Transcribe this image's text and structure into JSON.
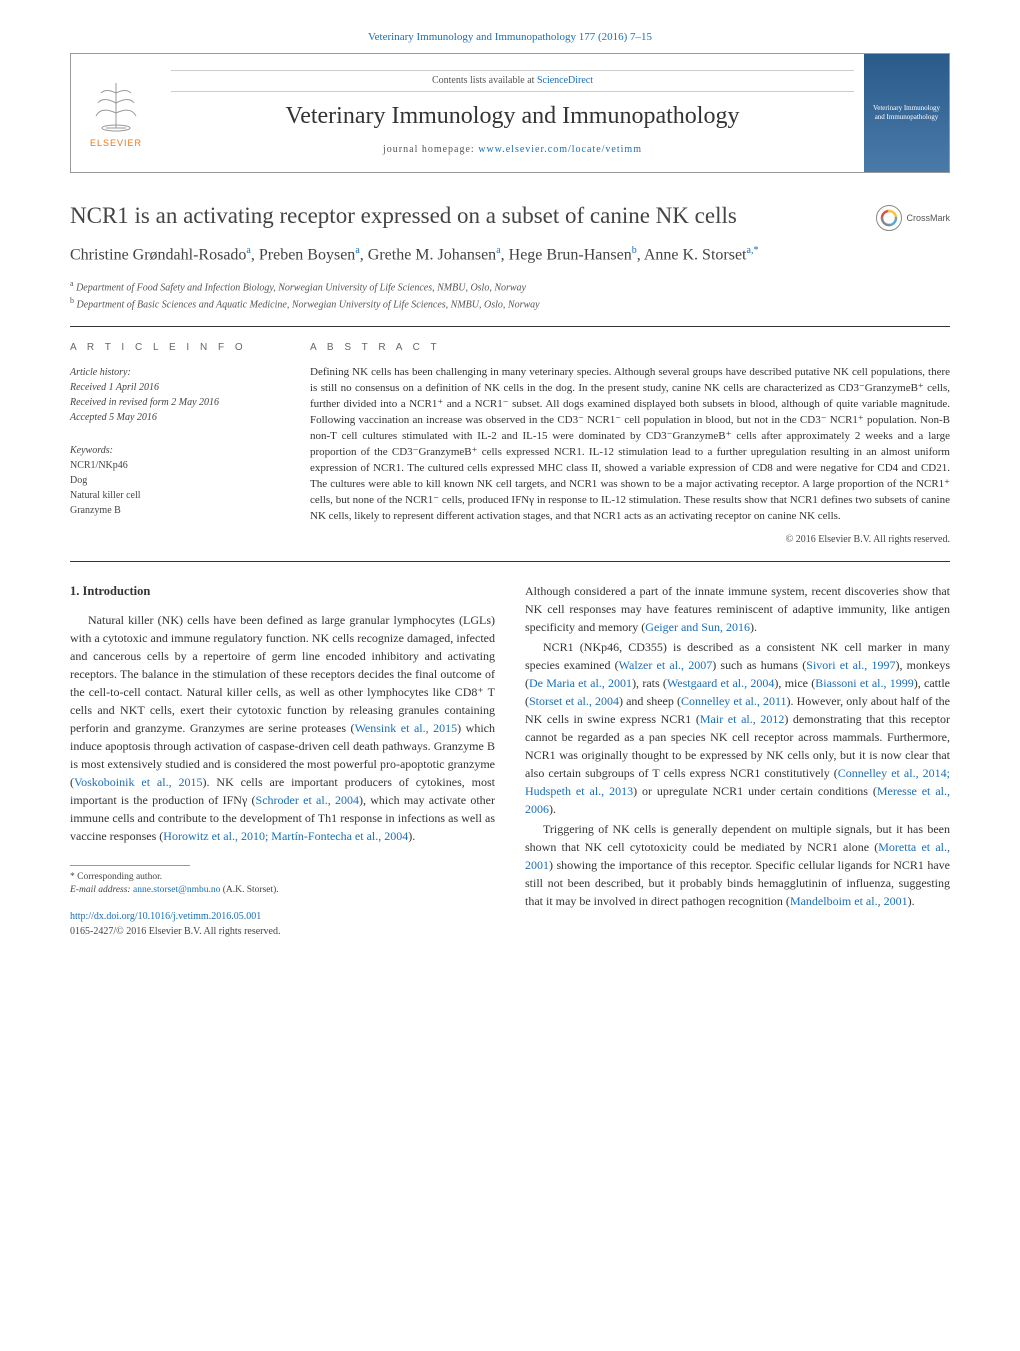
{
  "journal": {
    "header_link": "Veterinary Immunology and Immunopathology 177 (2016) 7–15",
    "contents_prefix": "Contents lists available at ",
    "contents_link": "ScienceDirect",
    "title": "Veterinary Immunology and Immunopathology",
    "homepage_prefix": "journal homepage: ",
    "homepage_url": "www.elsevier.com/locate/vetimm",
    "publisher_name": "ELSEVIER",
    "cover_text": "Veterinary Immunology and Immunopathology"
  },
  "crossmark_label": "CrossMark",
  "article": {
    "title": "NCR1 is an activating receptor expressed on a subset of canine NK cells",
    "authors_html": "Christine Grøndahl-Rosado<sup>a</sup>, Preben Boysen<sup>a</sup>, Grethe M. Johansen<sup>a</sup>, Hege Brun-Hansen<sup>b</sup>, Anne K. Storset<sup>a,*</sup>",
    "affiliations": [
      {
        "marker": "a",
        "text": "Department of Food Safety and Infection Biology, Norwegian University of Life Sciences, NMBU, Oslo, Norway"
      },
      {
        "marker": "b",
        "text": "Department of Basic Sciences and Aquatic Medicine, Norwegian University of Life Sciences, NMBU, Oslo, Norway"
      }
    ]
  },
  "info": {
    "section_label": "A R T I C L E   I N F O",
    "history_label": "Article history:",
    "received": "Received 1 April 2016",
    "revised": "Received in revised form 2 May 2016",
    "accepted": "Accepted 5 May 2016",
    "keywords_label": "Keywords:",
    "keywords": [
      "NCR1/NKp46",
      "Dog",
      "Natural killer cell",
      "Granzyme B"
    ]
  },
  "abstract": {
    "section_label": "A B S T R A C T",
    "text": "Defining NK cells has been challenging in many veterinary species. Although several groups have described putative NK cell populations, there is still no consensus on a definition of NK cells in the dog. In the present study, canine NK cells are characterized as CD3⁻GranzymeB⁺ cells, further divided into a NCR1⁺ and a NCR1⁻ subset. All dogs examined displayed both subsets in blood, although of quite variable magnitude. Following vaccination an increase was observed in the CD3⁻ NCR1⁻ cell population in blood, but not in the CD3⁻ NCR1⁺ population. Non-B non-T cell cultures stimulated with IL-2 and IL-15 were dominated by CD3⁻GranzymeB⁺ cells after approximately 2 weeks and a large proportion of the CD3⁻GranzymeB⁺ cells expressed NCR1. IL-12 stimulation lead to a further upregulation resulting in an almost uniform expression of NCR1. The cultured cells expressed MHC class II, showed a variable expression of CD8 and were negative for CD4 and CD21. The cultures were able to kill known NK cell targets, and NCR1 was shown to be a major activating receptor. A large proportion of the NCR1⁺ cells, but none of the NCR1⁻ cells, produced IFNγ in response to IL-12 stimulation. These results show that NCR1 defines two subsets of canine NK cells, likely to represent different activation stages, and that NCR1 acts as an activating receptor on canine NK cells.",
    "copyright": "© 2016 Elsevier B.V. All rights reserved."
  },
  "body": {
    "section_heading": "1. Introduction",
    "col1_p1": "Natural killer (NK) cells have been defined as large granular lymphocytes (LGLs) with a cytotoxic and immune regulatory function. NK cells recognize damaged, infected and cancerous cells by a repertoire of germ line encoded inhibitory and activating receptors. The balance in the stimulation of these receptors decides the final outcome of the cell-to-cell contact. Natural killer cells, as well as other lymphocytes like CD8⁺ T cells and NKT cells, exert their cytotoxic function by releasing granules containing perforin and granzyme. Granzymes are serine proteases (",
    "col1_c1": "Wensink et al., 2015",
    "col1_p1b": ") which induce apoptosis through activation of caspase-driven cell death pathways. Granzyme B is most extensively studied and is considered the most powerful pro-apoptotic granzyme (",
    "col1_c2": "Voskoboinik et al., 2015",
    "col1_p1c": "). NK cells are important producers of cytokines, most important is the production of IFNγ (",
    "col1_c3": "Schroder et al., 2004",
    "col1_p1d": "), which may activate other immune cells and contribute to the development of Th1 response in infections as well as vaccine responses (",
    "col1_c4": "Horowitz et al., 2010; Martín-Fontecha et al., 2004",
    "col1_p1e": ").",
    "col2_p0": "Although considered a part of the innate immune system, recent discoveries show that NK cell responses may have features reminiscent of adaptive immunity, like antigen specificity and memory (",
    "col2_c0": "Geiger and Sun, 2016",
    "col2_p0b": ").",
    "col2_p1": "NCR1 (NKp46, CD355) is described as a consistent NK cell marker in many species examined (",
    "col2_c1": "Walzer et al., 2007",
    "col2_p1b": ") such as humans (",
    "col2_c2": "Sivori et al., 1997",
    "col2_p1c": "), monkeys (",
    "col2_c3": "De Maria et al., 2001",
    "col2_p1d": "), rats (",
    "col2_c4": "Westgaard et al., 2004",
    "col2_p1e": "), mice (",
    "col2_c5": "Biassoni et al., 1999",
    "col2_p1f": "), cattle (",
    "col2_c6": "Storset et al., 2004",
    "col2_p1g": ") and sheep (",
    "col2_c7": "Connelley et al., 2011",
    "col2_p1h": "). However, only about half of the NK cells in swine express NCR1 (",
    "col2_c8": "Mair et al., 2012",
    "col2_p1i": ") demonstrating that this receptor cannot be regarded as a pan species NK cell receptor across mammals. Furthermore, NCR1 was originally thought to be expressed by NK cells only, but it is now clear that also certain subgroups of T cells express NCR1 constitutively (",
    "col2_c9": "Connelley et al., 2014; Hudspeth et al., 2013",
    "col2_p1j": ") or upregulate NCR1 under certain conditions (",
    "col2_c10": "Meresse et al., 2006",
    "col2_p1k": ").",
    "col2_p2": "Triggering of NK cells is generally dependent on multiple signals, but it has been shown that NK cell cytotoxicity could be mediated by NCR1 alone (",
    "col2_c11": "Moretta et al., 2001",
    "col2_p2b": ") showing the importance of this receptor. Specific cellular ligands for NCR1 have still not been described, but it probably binds hemagglutinin of influenza, suggesting that it may be involved in direct pathogen recognition (",
    "col2_c12": "Mandelboim et al., 2001",
    "col2_p2c": ")."
  },
  "footer": {
    "corr_label": "* Corresponding author.",
    "email_label": "E-mail address: ",
    "email": "anne.storset@nmbu.no",
    "email_suffix": " (A.K. Storset).",
    "doi": "http://dx.doi.org/10.1016/j.vetimm.2016.05.001",
    "issn": "0165-2427/© 2016 Elsevier B.V. All rights reserved."
  },
  "colors": {
    "link": "#1a6eb8",
    "elsevier_orange": "#e67817",
    "text": "#333333",
    "muted": "#555555",
    "rule": "#333333"
  }
}
